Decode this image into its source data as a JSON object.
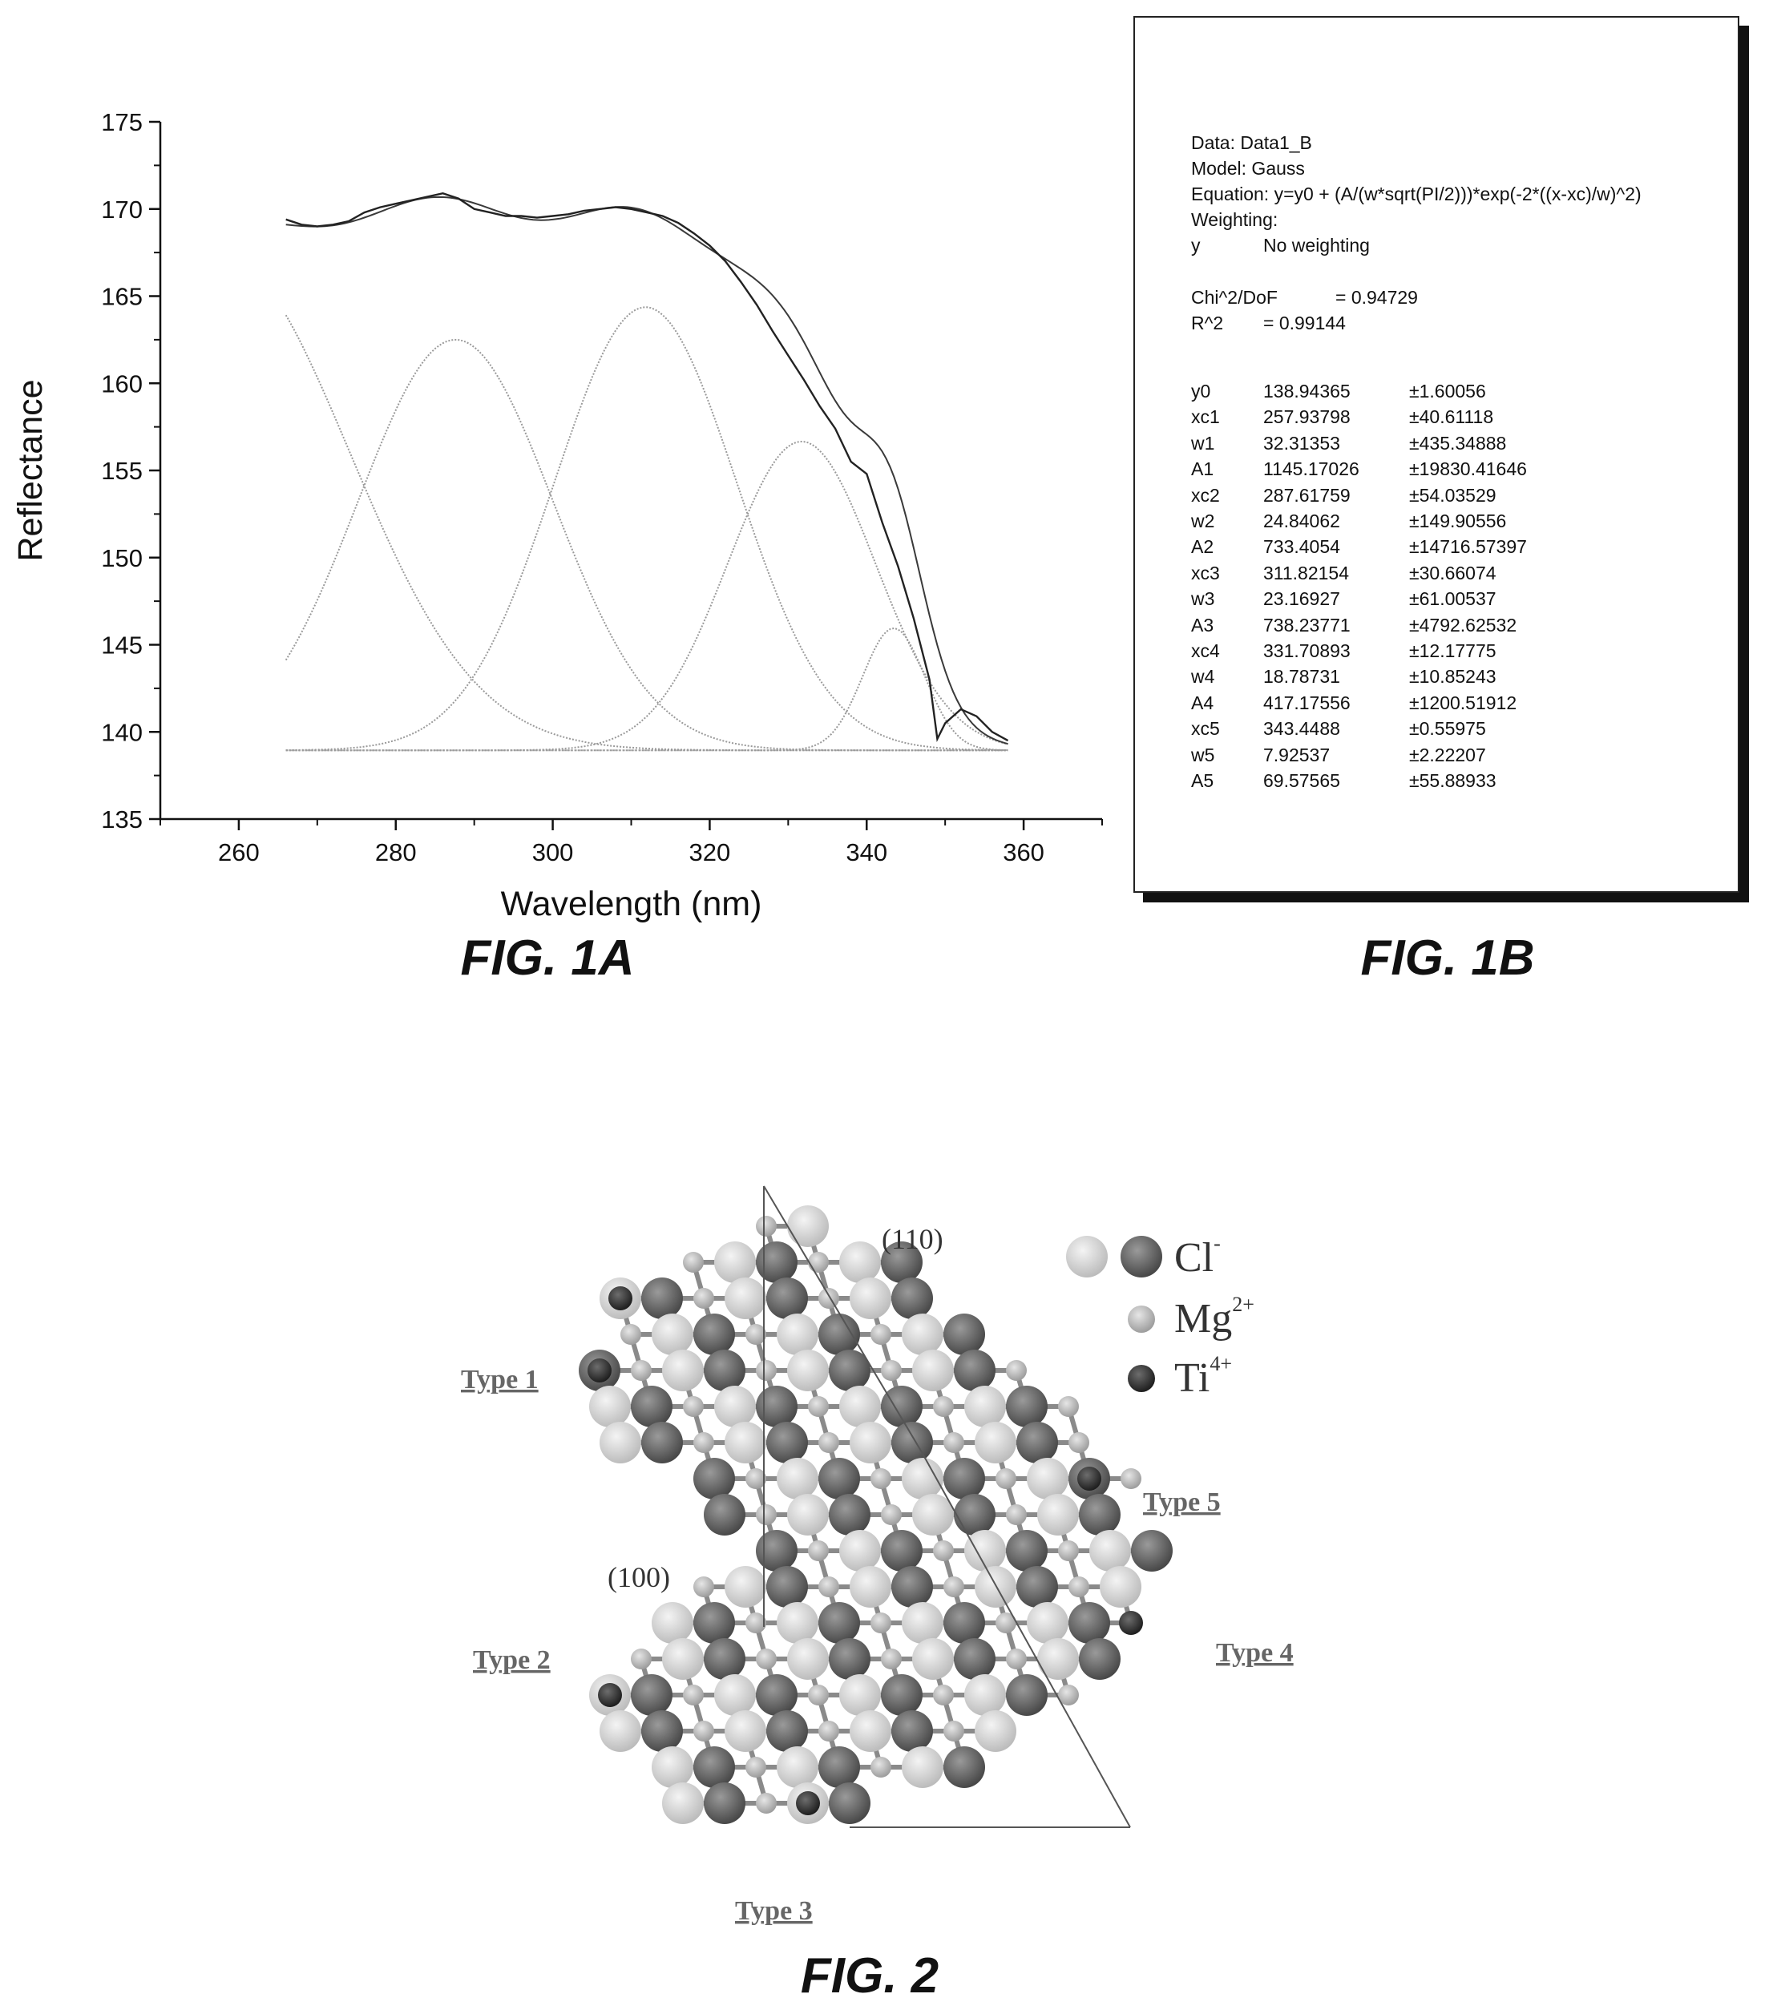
{
  "fig1a": {
    "caption": "FIG. 1A",
    "chart_data": {
      "type": "line",
      "xlabel": "Wavelength (nm)",
      "ylabel": "Reflectance",
      "xlim": [
        250,
        370
      ],
      "ylim": [
        135,
        175
      ],
      "xticks": [
        260,
        280,
        300,
        320,
        340,
        360
      ],
      "yticks": [
        135,
        140,
        145,
        150,
        155,
        160,
        165,
        170,
        175
      ],
      "grid": false,
      "fit_baseline_y0": 138.94365,
      "peaks": [
        {
          "xc": 257.93798,
          "w": 32.31353,
          "A": 1145.17026
        },
        {
          "xc": 287.61759,
          "w": 24.84062,
          "A": 733.4054
        },
        {
          "xc": 311.82154,
          "w": 23.16927,
          "A": 738.23771
        },
        {
          "xc": 331.70893,
          "w": 18.78731,
          "A": 417.17556
        },
        {
          "xc": 343.4488,
          "w": 7.92537,
          "A": 69.57565
        }
      ],
      "measured": {
        "x": [
          266,
          268,
          270,
          272,
          274,
          276,
          278,
          280,
          282,
          284,
          286,
          288,
          290,
          292,
          294,
          296,
          298,
          300,
          302,
          304,
          306,
          308,
          310,
          312,
          314,
          316,
          318,
          320,
          322,
          324,
          326,
          328,
          330,
          332,
          334,
          336,
          338,
          340,
          342,
          344,
          346,
          348,
          349,
          350,
          352,
          354,
          356,
          358
        ],
        "y": [
          169.4,
          169.1,
          169.0,
          169.1,
          169.3,
          169.8,
          170.1,
          170.3,
          170.5,
          170.7,
          170.9,
          170.6,
          170.0,
          169.8,
          169.6,
          169.6,
          169.5,
          169.6,
          169.7,
          169.9,
          170.0,
          170.1,
          170.0,
          169.8,
          169.6,
          169.2,
          168.6,
          167.9,
          167.0,
          165.8,
          164.5,
          163.0,
          161.6,
          160.2,
          158.7,
          157.4,
          155.5,
          154.8,
          152.0,
          149.5,
          146.5,
          143.0,
          139.6,
          140.5,
          141.3,
          140.9,
          140.0,
          139.5
        ]
      }
    }
  },
  "fig1b": {
    "caption": "FIG. 1B",
    "header": [
      "Data: Data1_B",
      "Model: Gauss",
      "Equation: y=y0 + (A/(w*sqrt(PI/2)))*exp(-2*((x-xc)/w)^2)",
      "Weighting:"
    ],
    "weighting_key": "y",
    "weighting_value": "No weighting",
    "chi_label": "Chi^2/DoF",
    "chi_value": "= 0.94729",
    "r2_label": "R^2",
    "r2_value": "=  0.99144",
    "params": [
      {
        "name": "y0",
        "value": "138.94365",
        "err": "±1.60056"
      },
      {
        "name": "xc1",
        "value": "257.93798",
        "err": "±40.61118"
      },
      {
        "name": "w1",
        "value": "32.31353",
        "err": "±435.34888"
      },
      {
        "name": "A1",
        "value": "1145.17026",
        "err": "±19830.41646"
      },
      {
        "name": "xc2",
        "value": "287.61759",
        "err": "±54.03529"
      },
      {
        "name": "w2",
        "value": "24.84062",
        "err": "±149.90556"
      },
      {
        "name": "A2",
        "value": "733.4054",
        "err": "±14716.57397"
      },
      {
        "name": "xc3",
        "value": "311.82154",
        "err": "±30.66074"
      },
      {
        "name": "w3",
        "value": "23.16927",
        "err": "±61.00537"
      },
      {
        "name": "A3",
        "value": "738.23771",
        "err": "±4792.62532"
      },
      {
        "name": "xc4",
        "value": "331.70893",
        "err": "±12.17775"
      },
      {
        "name": "w4",
        "value": "18.78731",
        "err": "±10.85243"
      },
      {
        "name": "A4",
        "value": "417.17556",
        "err": "±1200.51912"
      },
      {
        "name": "xc5",
        "value": "343.4488",
        "err": "±0.55975"
      },
      {
        "name": "w5",
        "value": "7.92537",
        "err": "±2.22207"
      },
      {
        "name": "A5",
        "value": "69.57565",
        "err": "±55.88933"
      }
    ]
  },
  "fig2": {
    "caption": "FIG. 2",
    "plane_110": "(110)",
    "plane_100": "(100)",
    "types": [
      "Type 1",
      "Type 2",
      "Type 3",
      "Type 4",
      "Type 5"
    ],
    "legend": [
      {
        "ion": "Cl",
        "charge": "-"
      },
      {
        "ion": "Mg",
        "charge": "2+"
      },
      {
        "ion": "Ti",
        "charge": "4+"
      }
    ],
    "colors": {
      "cl_light": "#d9d9d9",
      "cl_dark": "#6a6a6a",
      "mg": "#bdbdbd",
      "ti": "#3a3a3a",
      "bond": "#8a8a8a"
    }
  }
}
